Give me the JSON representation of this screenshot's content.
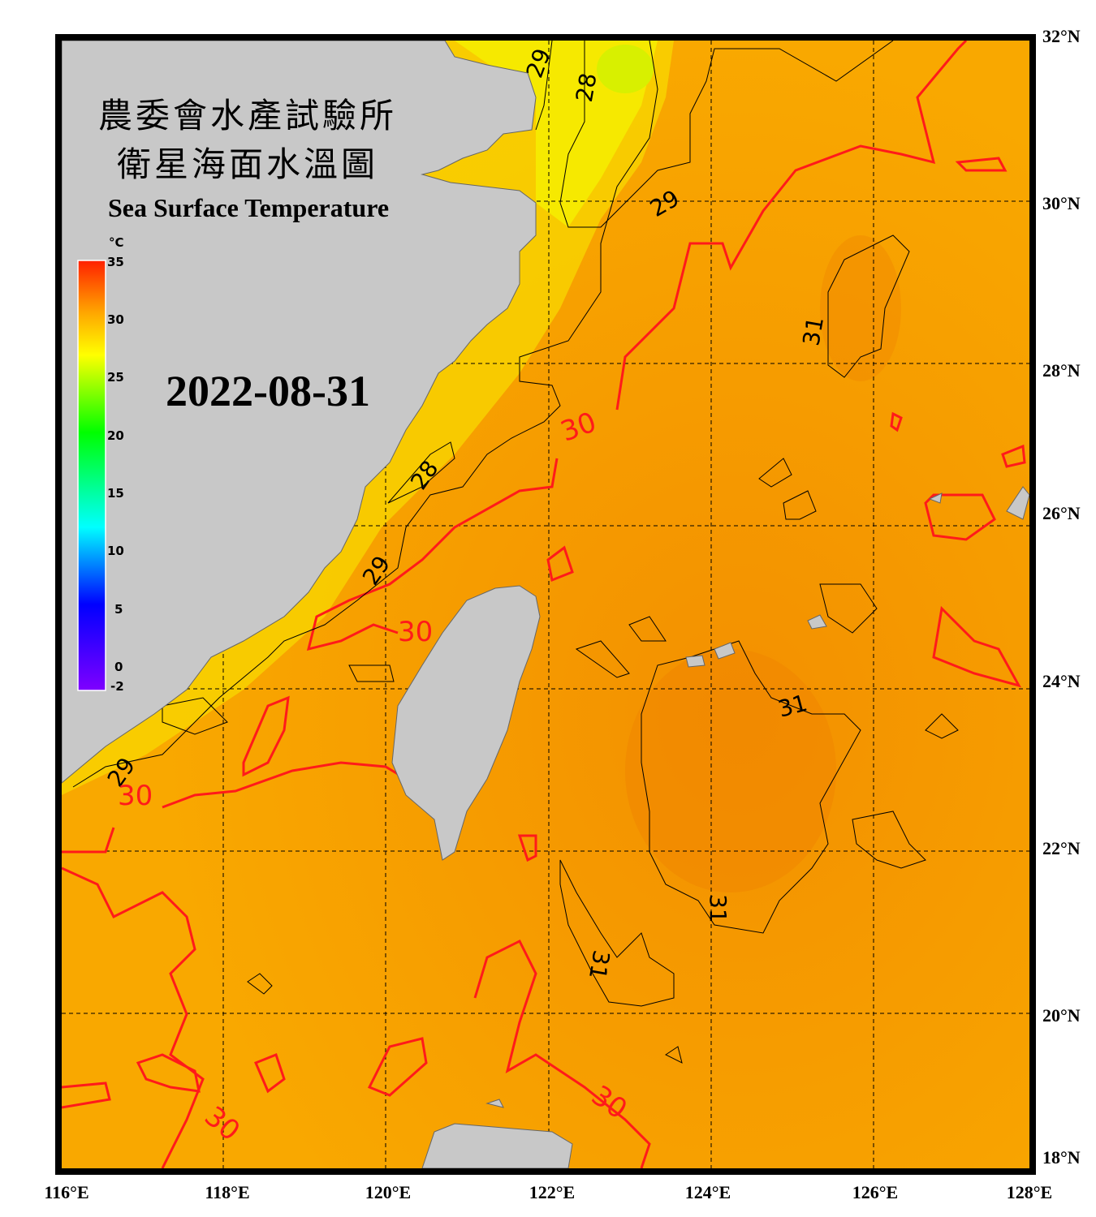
{
  "title": {
    "line1": "農委會水產試驗所",
    "line2": "衛星海面水溫圖",
    "english": "Sea Surface Temperature",
    "date": "2022-08-31"
  },
  "colorbar": {
    "unit": "°C",
    "ticks": [
      "35",
      "30",
      "25",
      "20",
      "15",
      "10",
      "5",
      "0",
      "-2"
    ],
    "range": [
      -2,
      35
    ],
    "colors": [
      "#7f00ff",
      "#0000ff",
      "#00ffff",
      "#00ff00",
      "#ffff00",
      "#ffa500",
      "#ff2000"
    ]
  },
  "axes": {
    "lon_labels": [
      "116°E",
      "118°E",
      "120°E",
      "122°E",
      "124°E",
      "126°E",
      "128°E"
    ],
    "lat_labels": [
      "32°N",
      "30°N",
      "28°N",
      "26°N",
      "24°N",
      "22°N",
      "20°N",
      "18°N"
    ],
    "lon_range": [
      116,
      128
    ],
    "lat_range": [
      18,
      32
    ],
    "grid": "dashed"
  },
  "contour_labels": [
    "29",
    "28",
    "29",
    "31",
    "30",
    "28",
    "29",
    "30",
    "31",
    "29",
    "30",
    "31",
    "31",
    "30",
    "30"
  ],
  "colors": {
    "land": "#c8c8c8",
    "sea_warm": "#f7a000",
    "sea_cool": "#f8e800",
    "contour_30": "#ff1a1a",
    "contour_other": "#000000"
  }
}
